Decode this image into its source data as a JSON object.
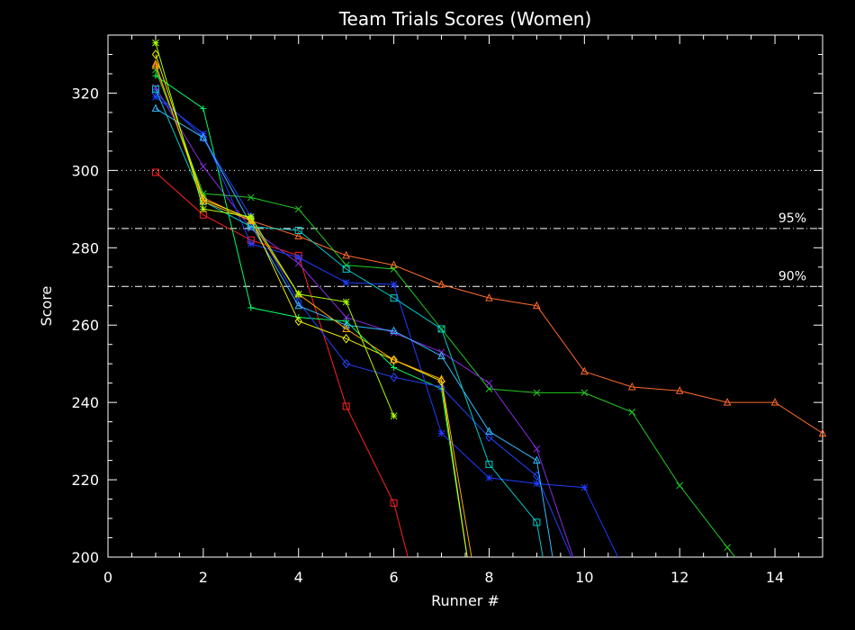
{
  "chart_data": {
    "type": "line",
    "title": "Team Trials Scores (Women)",
    "xlabel": "Runner #",
    "ylabel": "Score",
    "xlim": [
      0,
      15
    ],
    "ylim": [
      200,
      335
    ],
    "x_ticks": [
      0,
      2,
      4,
      6,
      8,
      10,
      12,
      14
    ],
    "y_ticks": [
      200,
      220,
      240,
      260,
      280,
      300,
      320
    ],
    "reference_lines": [
      {
        "y": 300,
        "style": "dotted",
        "label": ""
      },
      {
        "y": 285,
        "style": "dashdot",
        "label": "95%"
      },
      {
        "y": 270,
        "style": "dashdot",
        "label": "90%"
      }
    ],
    "series": [
      {
        "color": "#ff6a2a",
        "marker": "triangle",
        "x": [
          1,
          2,
          3,
          4,
          5,
          6,
          7,
          8,
          9,
          10,
          11,
          12,
          13,
          14,
          15
        ],
        "y": [
          327,
          293,
          287,
          283,
          278,
          275.5,
          270.5,
          267,
          265,
          248,
          244,
          243,
          240,
          240,
          232
        ]
      },
      {
        "color": "#22cc22",
        "marker": "x",
        "x": [
          1,
          2,
          3,
          4,
          5,
          6,
          7,
          8,
          9,
          10,
          11,
          12,
          13,
          13.5
        ],
        "y": [
          326,
          294,
          293,
          290,
          275.5,
          274.5,
          259,
          243.5,
          242.5,
          242.5,
          237.5,
          218.5,
          202.5,
          195
        ]
      },
      {
        "color": "#ff2222",
        "marker": "square",
        "x": [
          1,
          2,
          3,
          4,
          5,
          6,
          6.4
        ],
        "y": [
          299.5,
          288.5,
          282,
          278,
          239,
          214,
          195
        ]
      },
      {
        "color": "#8a2be2",
        "marker": "x",
        "x": [
          1,
          2,
          3,
          4,
          5,
          6,
          7,
          8,
          9,
          9.9
        ],
        "y": [
          321.5,
          301,
          285,
          276,
          262,
          258,
          253,
          245,
          228,
          195
        ]
      },
      {
        "color": "#00ff66",
        "marker": "plus",
        "x": [
          1,
          2,
          3,
          4,
          5,
          6,
          7,
          7.6
        ],
        "y": [
          324.5,
          316,
          264.5,
          262,
          261,
          249,
          243.5,
          195
        ]
      },
      {
        "color": "#1f3cff",
        "marker": "asterisk",
        "x": [
          1,
          2,
          3,
          4,
          5,
          6,
          7,
          8,
          9,
          10,
          10.9
        ],
        "y": [
          319,
          309.5,
          281,
          277.5,
          271,
          270.5,
          232,
          220.5,
          219,
          218,
          195
        ]
      },
      {
        "color": "#2244ff",
        "marker": "diamond",
        "x": [
          1,
          2,
          3,
          4,
          5,
          6,
          7,
          8,
          9,
          9.9
        ],
        "y": [
          320,
          308.5,
          288,
          266,
          250,
          246.5,
          244,
          231,
          221,
          195
        ]
      },
      {
        "color": "#33bbff",
        "marker": "triangle",
        "x": [
          1,
          2,
          3,
          4,
          5,
          6,
          7,
          8,
          9,
          9.4
        ],
        "y": [
          316,
          308.5,
          286,
          265,
          260,
          258.5,
          252,
          232.5,
          225,
          195
        ]
      },
      {
        "color": "#00cccc",
        "marker": "square",
        "x": [
          1,
          2,
          3,
          4,
          5,
          6,
          7,
          8,
          9,
          9.2
        ],
        "y": [
          321,
          292,
          285.5,
          284.5,
          274.5,
          267,
          259,
          224,
          209,
          195
        ]
      },
      {
        "color": "#eeee00",
        "marker": "diamond",
        "x": [
          1,
          2,
          3,
          4,
          5,
          6,
          7,
          7.6
        ],
        "y": [
          330,
          292.5,
          287.5,
          261,
          256.5,
          251,
          245.5,
          195
        ]
      },
      {
        "color": "#ffaa00",
        "marker": "triangle",
        "x": [
          1,
          2,
          3,
          4,
          5,
          6,
          7,
          7.7
        ],
        "y": [
          327.5,
          292,
          287,
          268,
          259,
          251,
          246,
          195
        ]
      },
      {
        "color": "#aaff00",
        "marker": "asterisk",
        "x": [
          1,
          2,
          3,
          4,
          5,
          6
        ],
        "y": [
          333,
          290,
          288,
          268,
          266,
          236.5
        ]
      }
    ]
  }
}
